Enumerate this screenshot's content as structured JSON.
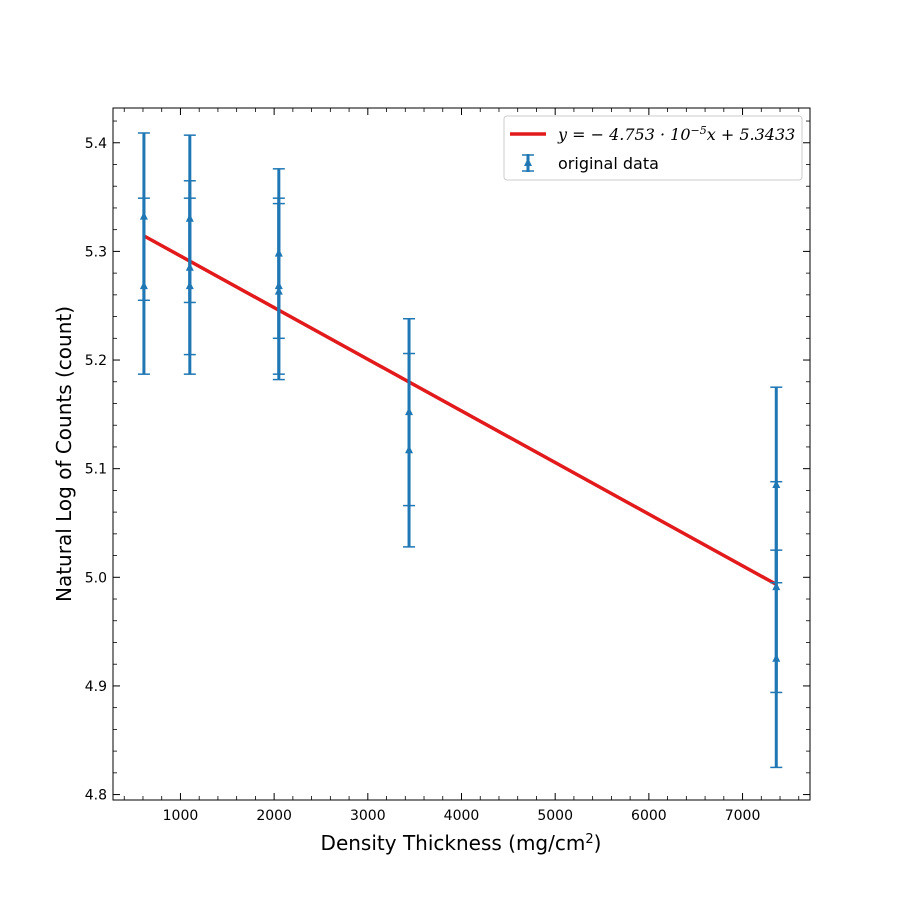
{
  "chart_data": {
    "type": "scatter",
    "xlabel": "Density Thickness (mg/cm",
    "xlabel_sup": "2",
    "xlabel_end": ")",
    "ylabel": "Natural Log of Counts (count)",
    "xlim": [
      280,
      7720
    ],
    "ylim": [
      4.795,
      5.432
    ],
    "xticks": [
      1000,
      2000,
      3000,
      4000,
      5000,
      6000,
      7000
    ],
    "yticks": [
      4.8,
      4.9,
      5.0,
      5.1,
      5.2,
      5.3,
      5.4
    ],
    "xtick_labels": [
      "1000",
      "2000",
      "3000",
      "4000",
      "5000",
      "6000",
      "7000"
    ],
    "ytick_labels": [
      "4.8",
      "4.9",
      "5.0",
      "5.1",
      "5.2",
      "5.3",
      "5.4"
    ],
    "x_minor_step": 200,
    "y_minor_step": 0.02,
    "legend_position": "top-right",
    "fit": {
      "name_prefix": "y = − 4.753 · 10",
      "name_sup": "−5",
      "name_suffix": "x + 5.3433",
      "slope": -4.753e-05,
      "intercept": 5.3433,
      "x_range": [
        610,
        7360
      ],
      "color": "#e31a1c"
    },
    "series": [
      {
        "name": "original data",
        "color": "#1f77b4",
        "points": [
          {
            "x": 610,
            "y": 5.332,
            "err": 0.077
          },
          {
            "x": 610,
            "y": 5.268,
            "err": 0.081
          },
          {
            "x": 1100,
            "y": 5.33,
            "err": 0.077
          },
          {
            "x": 1100,
            "y": 5.285,
            "err": 0.08
          },
          {
            "x": 1100,
            "y": 5.268,
            "err": 0.081
          },
          {
            "x": 2050,
            "y": 5.298,
            "err": 0.078
          },
          {
            "x": 2050,
            "y": 5.268,
            "err": 0.081
          },
          {
            "x": 2050,
            "y": 5.263,
            "err": 0.081
          },
          {
            "x": 3440,
            "y": 5.152,
            "err": 0.086
          },
          {
            "x": 3440,
            "y": 5.117,
            "err": 0.089
          },
          {
            "x": 7360,
            "y": 5.085,
            "err": 0.09
          },
          {
            "x": 7360,
            "y": 4.991,
            "err": 0.097
          },
          {
            "x": 7360,
            "y": 4.925,
            "err": 0.1
          }
        ]
      }
    ]
  }
}
